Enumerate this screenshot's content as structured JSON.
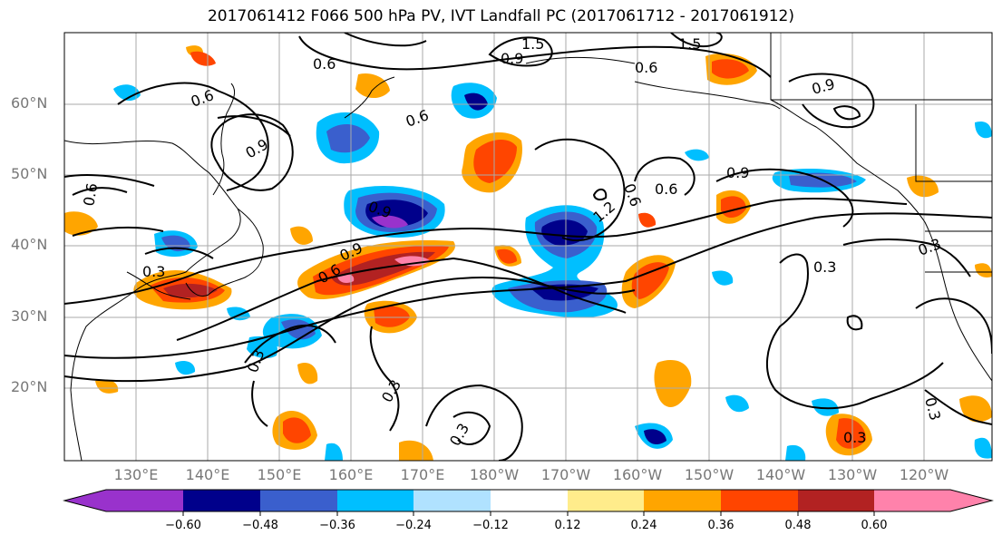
{
  "title": "2017061412 F066 500 hPa PV, IVT Landfall PC (2017061712 - 2017061912)",
  "lat_labels": [
    "60°N",
    "50°N",
    "40°N",
    "30°N",
    "20°N"
  ],
  "lon_labels": [
    "130°E",
    "140°E",
    "150°E",
    "160°E",
    "170°E",
    "180°W",
    "170°W",
    "160°W",
    "150°W",
    "140°W",
    "130°W",
    "120°W"
  ],
  "colorbar": {
    "ticks": [
      "−0.60",
      "−0.48",
      "−0.36",
      "−0.24",
      "−0.12",
      "0.12",
      "0.24",
      "0.36",
      "0.48",
      "0.60"
    ],
    "colors": [
      "#9932CC",
      "#00008B",
      "#3A5FCD",
      "#00BFFF",
      "#B0E2FF",
      "#FFFFFF",
      "#FFEC8B",
      "#FFA500",
      "#FF4500",
      "#B22222",
      "#FF82AB"
    ]
  },
  "contour_labels": [
    "0.6",
    "0.6",
    "0.6",
    "0.6",
    "0.6",
    "0.6",
    "0.6",
    "0.9",
    "0.9",
    "0.9",
    "0.9",
    "0.9",
    "0.9",
    "0.3",
    "0.3",
    "0.3",
    "0.3",
    "0.3",
    "0.3",
    "0.3",
    "0.3",
    "1.2",
    "1.5",
    "1.5",
    "0.6"
  ]
}
